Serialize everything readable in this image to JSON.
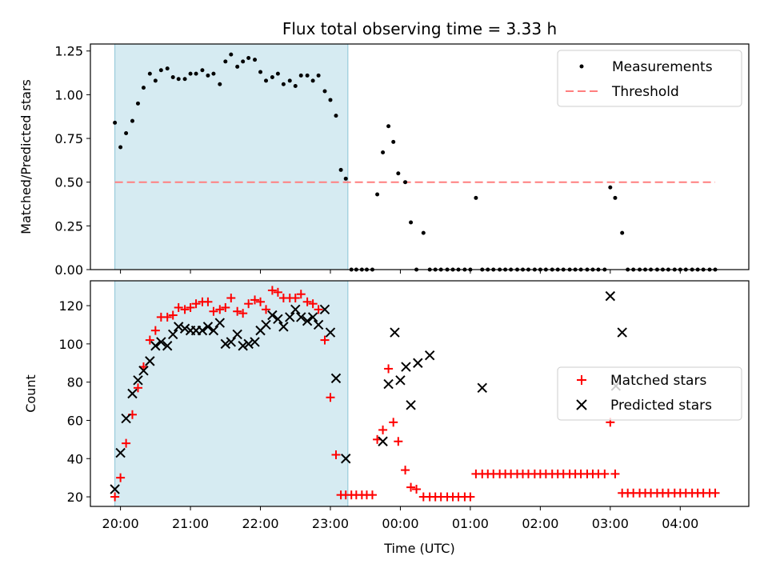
{
  "title": "Flux total observing time = 3.33 h",
  "xlabel": "Time (UTC)",
  "xticks": [
    "20:00",
    "21:00",
    "22:00",
    "23:00",
    "00:00",
    "01:00",
    "02:00",
    "03:00",
    "04:00"
  ],
  "chart_data": [
    {
      "type": "scatter",
      "title": "Flux total observing time = 3.33 h",
      "ylabel": "Matched/Predicted stars",
      "ylim": [
        0,
        1.29
      ],
      "xlim_hours": [
        19.57,
        4.98
      ],
      "xticks_hours": [
        20,
        21,
        22,
        23,
        24,
        25,
        26,
        27,
        28
      ],
      "yticks": [
        "0.00",
        "0.25",
        "0.50",
        "0.75",
        "1.00",
        "1.25"
      ],
      "yticks_values": [
        0,
        0.25,
        0.5,
        0.75,
        1.0,
        1.25
      ],
      "shaded_span_hours": [
        19.92,
        23.25
      ],
      "legend": {
        "placement": "top-right",
        "entries": [
          "Measurements",
          "Threshold"
        ]
      },
      "threshold": {
        "name": "Threshold",
        "value": 0.5,
        "x_range_hours": [
          19.92,
          4.5
        ],
        "color": "#ff7f7f"
      },
      "series": [
        {
          "name": "Measurements",
          "color": "#000000",
          "x_hours": [
            19.92,
            20.0,
            20.08,
            20.17,
            20.25,
            20.33,
            20.42,
            20.5,
            20.58,
            20.67,
            20.75,
            20.83,
            20.92,
            21.0,
            21.08,
            21.17,
            21.25,
            21.33,
            21.42,
            21.5,
            21.58,
            21.67,
            21.75,
            21.83,
            21.92,
            22.0,
            22.08,
            22.17,
            22.25,
            22.33,
            22.42,
            22.5,
            22.58,
            22.67,
            22.75,
            22.83,
            22.92,
            23.0,
            23.08,
            23.15,
            23.22,
            23.3,
            23.37,
            23.45,
            23.52,
            23.6,
            23.67,
            23.75,
            23.83,
            23.9,
            23.97,
            24.07,
            24.15,
            24.23,
            24.33,
            24.42,
            24.5,
            24.58,
            24.67,
            24.75,
            24.83,
            24.92,
            25.0,
            25.08,
            25.17,
            25.25,
            25.33,
            25.42,
            25.5,
            25.58,
            25.67,
            25.75,
            25.83,
            25.92,
            26.0,
            26.08,
            26.17,
            26.25,
            26.33,
            26.42,
            26.5,
            26.58,
            26.67,
            26.75,
            26.83,
            26.92,
            27.0,
            27.07,
            27.17,
            27.25,
            27.33,
            27.42,
            27.5,
            27.58,
            27.67,
            27.75,
            27.83,
            27.92,
            28.0,
            28.08,
            28.17,
            28.25,
            28.33,
            28.42,
            28.5
          ],
          "y": [
            0.84,
            0.7,
            0.78,
            0.85,
            0.95,
            1.04,
            1.12,
            1.08,
            1.14,
            1.15,
            1.1,
            1.09,
            1.09,
            1.12,
            1.12,
            1.14,
            1.11,
            1.12,
            1.06,
            1.19,
            1.23,
            1.16,
            1.19,
            1.21,
            1.2,
            1.13,
            1.08,
            1.1,
            1.12,
            1.06,
            1.08,
            1.05,
            1.11,
            1.11,
            1.08,
            1.11,
            1.02,
            0.97,
            0.88,
            0.57,
            0.52,
            0,
            0,
            0,
            0,
            0,
            0.43,
            0.67,
            0.82,
            0.73,
            0.55,
            0.5,
            0.27,
            0,
            0.21,
            0,
            0,
            0,
            0,
            0,
            0,
            0,
            0,
            0.41,
            0,
            0,
            0,
            0,
            0,
            0,
            0,
            0,
            0,
            0,
            0,
            0,
            0,
            0,
            0,
            0,
            0,
            0,
            0,
            0,
            0,
            0,
            0.47,
            0.41,
            0.21,
            0,
            0,
            0,
            0,
            0,
            0,
            0,
            0,
            0,
            0,
            0,
            0,
            0,
            0,
            0,
            0
          ]
        }
      ]
    },
    {
      "type": "scatter",
      "ylabel": "Count",
      "ylim": [
        15,
        133
      ],
      "xlim_hours": [
        19.57,
        4.98
      ],
      "xticks_hours": [
        20,
        21,
        22,
        23,
        24,
        25,
        26,
        27,
        28
      ],
      "yticks": [
        "20",
        "40",
        "60",
        "80",
        "100",
        "120"
      ],
      "yticks_values": [
        20,
        40,
        60,
        80,
        100,
        120
      ],
      "shaded_span_hours": [
        19.92,
        23.25
      ],
      "legend": {
        "placement": "center-right",
        "entries": [
          "Matched stars",
          "Predicted stars"
        ]
      },
      "series": [
        {
          "name": "Matched stars",
          "marker": "plus",
          "color": "#ff0000",
          "x_hours": [
            19.92,
            20.0,
            20.08,
            20.17,
            20.25,
            20.33,
            20.42,
            20.5,
            20.58,
            20.67,
            20.75,
            20.83,
            20.92,
            21.0,
            21.08,
            21.17,
            21.25,
            21.33,
            21.42,
            21.5,
            21.58,
            21.67,
            21.75,
            21.83,
            21.92,
            22.0,
            22.08,
            22.17,
            22.25,
            22.33,
            22.42,
            22.5,
            22.58,
            22.67,
            22.75,
            22.83,
            22.92,
            23.0,
            23.08,
            23.15,
            23.22,
            23.3,
            23.37,
            23.45,
            23.52,
            23.6,
            23.67,
            23.75,
            23.83,
            23.9,
            23.97,
            24.07,
            24.15,
            24.23,
            24.33,
            24.42,
            24.5,
            24.58,
            24.67,
            24.75,
            24.83,
            24.92,
            25.0,
            25.08,
            25.17,
            25.25,
            25.33,
            25.42,
            25.5,
            25.58,
            25.67,
            25.75,
            25.83,
            25.92,
            26.0,
            26.08,
            26.17,
            26.25,
            26.33,
            26.42,
            26.5,
            26.58,
            26.67,
            26.75,
            26.83,
            26.92,
            27.0,
            27.07,
            27.17,
            27.25,
            27.33,
            27.42,
            27.5,
            27.58,
            27.67,
            27.75,
            27.83,
            27.92,
            28.0,
            28.08,
            28.17,
            28.25,
            28.33,
            28.42,
            28.5
          ],
          "y": [
            20,
            30,
            48,
            63,
            77,
            88,
            102,
            107,
            114,
            114,
            115,
            119,
            118,
            119,
            121,
            122,
            122,
            117,
            118,
            119,
            124,
            117,
            116,
            121,
            123,
            122,
            118,
            128,
            127,
            124,
            124,
            124,
            126,
            122,
            121,
            118,
            102,
            72,
            42,
            21,
            21,
            21,
            21,
            21,
            21,
            21,
            50,
            55,
            87,
            59,
            49,
            34,
            25,
            24,
            20,
            20,
            20,
            20,
            20,
            20,
            20,
            20,
            20,
            32,
            32,
            32,
            32,
            32,
            32,
            32,
            32,
            32,
            32,
            32,
            32,
            32,
            32,
            32,
            32,
            32,
            32,
            32,
            32,
            32,
            32,
            32,
            59,
            32,
            22,
            22,
            22,
            22,
            22,
            22,
            22,
            22,
            22,
            22,
            22,
            22,
            22,
            22,
            22,
            22,
            22
          ]
        },
        {
          "name": "Predicted stars",
          "marker": "x",
          "color": "#000000",
          "x_hours": [
            19.92,
            20.0,
            20.08,
            20.17,
            20.25,
            20.33,
            20.42,
            20.5,
            20.58,
            20.67,
            20.75,
            20.83,
            20.92,
            21.0,
            21.08,
            21.17,
            21.25,
            21.33,
            21.42,
            21.5,
            21.58,
            21.67,
            21.75,
            21.83,
            21.92,
            22.0,
            22.08,
            22.17,
            22.25,
            22.33,
            22.42,
            22.5,
            22.58,
            22.67,
            22.75,
            22.83,
            22.92,
            23.0,
            23.08,
            23.22,
            23.75,
            23.83,
            23.92,
            24.0,
            24.08,
            24.15,
            24.25,
            24.42,
            25.17,
            27.0,
            27.17,
            27.08
          ],
          "y": [
            24,
            43,
            61,
            74,
            81,
            86,
            91,
            99,
            101,
            99,
            105,
            109,
            108,
            107,
            107,
            107,
            109,
            107,
            111,
            100,
            101,
            105,
            99,
            100,
            101,
            107,
            110,
            115,
            113,
            109,
            114,
            118,
            114,
            112,
            114,
            110,
            118,
            106,
            82,
            40,
            49,
            79,
            106,
            81,
            88,
            68,
            90,
            94,
            77,
            125,
            106,
            78
          ]
        }
      ]
    }
  ]
}
